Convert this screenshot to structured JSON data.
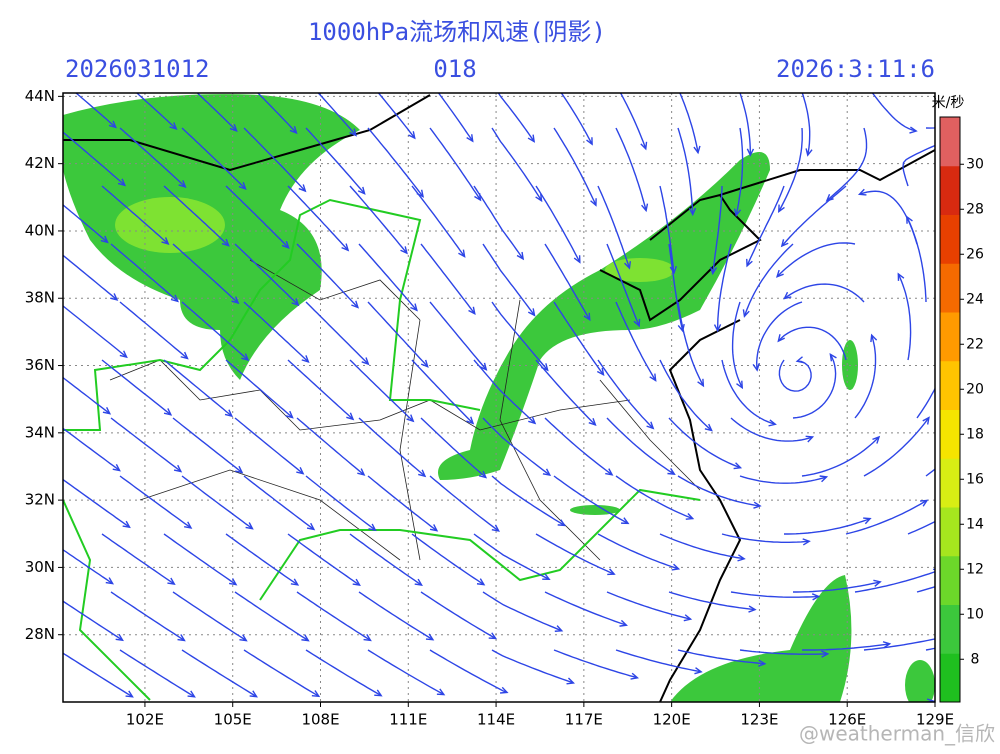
{
  "header": {
    "title": "1000hPa流场和风速(阴影)",
    "init_time": "2026031012",
    "forecast_hour": "018",
    "valid_time": "2026:3:11:6"
  },
  "map": {
    "lon_range": [
      99.2,
      129
    ],
    "lat_range": [
      26,
      44.1
    ],
    "lat_ticks": [
      {
        "value": 28,
        "label": "28N"
      },
      {
        "value": 30,
        "label": "30N"
      },
      {
        "value": 32,
        "label": "32N"
      },
      {
        "value": 34,
        "label": "34N"
      },
      {
        "value": 36,
        "label": "36N"
      },
      {
        "value": 38,
        "label": "38N"
      },
      {
        "value": 40,
        "label": "40N"
      },
      {
        "value": 42,
        "label": "42N"
      },
      {
        "value": 44,
        "label": "44N"
      }
    ],
    "lon_ticks": [
      {
        "value": 102,
        "label": "102E"
      },
      {
        "value": 105,
        "label": "105E"
      },
      {
        "value": 108,
        "label": "108E"
      },
      {
        "value": 111,
        "label": "111E"
      },
      {
        "value": 114,
        "label": "114E"
      },
      {
        "value": 117,
        "label": "117E"
      },
      {
        "value": 120,
        "label": "120E"
      },
      {
        "value": 123,
        "label": "123E"
      },
      {
        "value": 126,
        "label": "126E"
      },
      {
        "value": 129,
        "label": "129E"
      }
    ]
  },
  "colorbar": {
    "title": "米/秒",
    "range": [
      6.1,
      32.1
    ],
    "ticks": [
      8,
      10,
      12,
      14,
      16,
      18,
      20,
      22,
      24,
      26,
      28,
      30
    ]
  },
  "watermark": "@weatherman_信欣"
}
